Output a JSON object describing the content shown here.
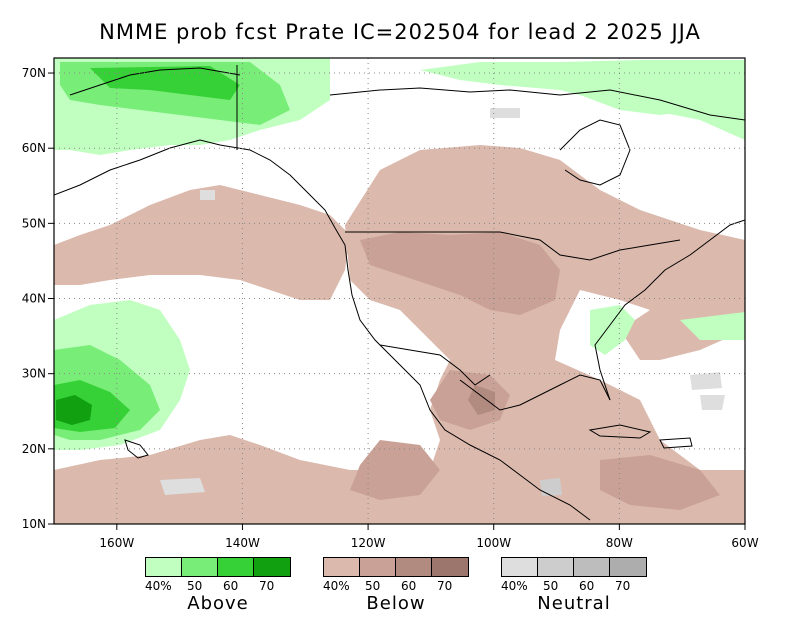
{
  "title": "NMME prob fcst Prate IC=202504 for lead 2 2025 JJA",
  "map": {
    "lon_range": [
      -170,
      -60
    ],
    "lat_range": [
      10,
      72
    ],
    "lon_ticks": [
      "160W",
      "140W",
      "120W",
      "100W",
      "80W",
      "60W"
    ],
    "lat_ticks": [
      "70N",
      "60N",
      "50N",
      "40N",
      "30N",
      "20N",
      "10N"
    ],
    "colors": {
      "land_bg": "#ffffff",
      "above": [
        "#c0ffc0",
        "#78ee78",
        "#36d136",
        "#10a010"
      ],
      "below": [
        "#dbb9ad",
        "#c9a196",
        "#b18a80",
        "#9c766c"
      ],
      "neutral": [
        "#dedede",
        "#cdcdcd",
        "#bdbdbd",
        "#adadad"
      ]
    }
  },
  "legend": [
    {
      "label": "Above",
      "ticks": [
        "40%",
        "50",
        "60",
        "70"
      ],
      "colors": [
        "#c0ffc0",
        "#78ee78",
        "#36d136",
        "#10a010"
      ]
    },
    {
      "label": "Below",
      "ticks": [
        "40%",
        "50",
        "60",
        "70"
      ],
      "colors": [
        "#dbb9ad",
        "#c9a196",
        "#b18a80",
        "#9c766c"
      ]
    },
    {
      "label": "Neutral",
      "ticks": [
        "40%",
        "50",
        "60",
        "70"
      ],
      "colors": [
        "#dedede",
        "#cdcdcd",
        "#bdbdbd",
        "#adadad"
      ]
    }
  ]
}
